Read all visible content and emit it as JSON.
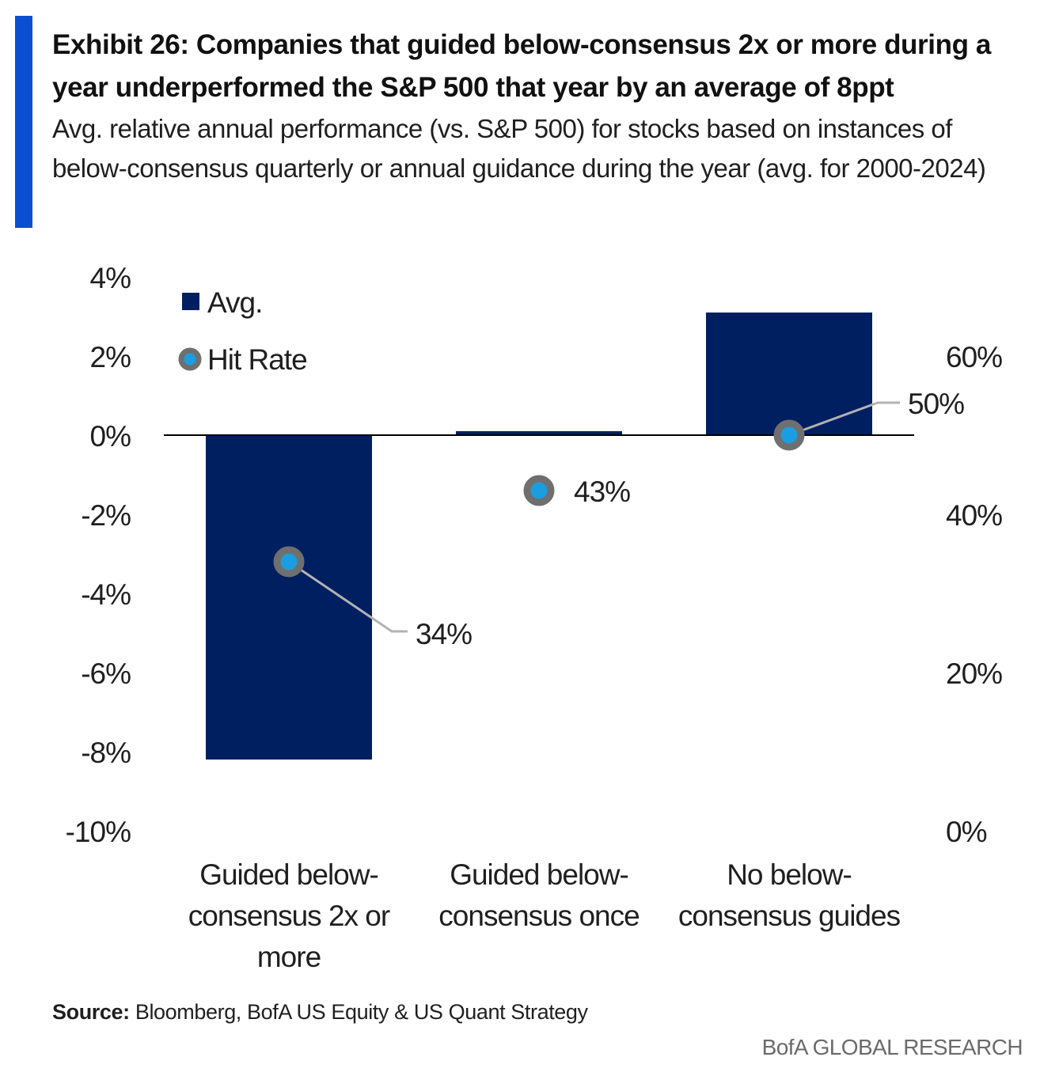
{
  "exhibit": {
    "title": "Exhibit 26: Companies that guided below-consensus 2x or more during a year underperformed the S&P 500 that year by an average of 8ppt",
    "subtitle": "Avg. relative annual performance (vs. S&P 500) for stocks based on instances of below-consensus quarterly or annual guidance during the year (avg. for 2000-2024)",
    "source_label": "Source:",
    "source_text": " Bloomberg, BofA US Equity & US Quant Strategy",
    "brand": "BofA GLOBAL RESEARCH"
  },
  "colors": {
    "accent": "#0b4fd1",
    "bar": "#001f60",
    "marker_ring": "#6f6f6f",
    "marker_fill": "#1a9ee0",
    "leader_line": "#b3b3b3",
    "zero_line": "#000000"
  },
  "chart_data": {
    "type": "bar",
    "categories": [
      [
        "Guided below-",
        "consensus 2x or",
        "more"
      ],
      [
        "Guided below-",
        "consensus once"
      ],
      [
        "No below-",
        "consensus guides"
      ]
    ],
    "series": [
      {
        "name": "Avg.",
        "type": "bar",
        "axis": "left",
        "values": [
          -8.2,
          0.1,
          3.1
        ]
      },
      {
        "name": "Hit Rate",
        "type": "scatter",
        "axis": "right",
        "values": [
          34,
          43,
          50
        ],
        "data_labels": [
          "34%",
          "43%",
          "50%"
        ]
      }
    ],
    "y_left": {
      "ylim": [
        -10,
        4
      ],
      "ticks": [
        4,
        2,
        0,
        -2,
        -4,
        -6,
        -8,
        -10
      ],
      "tick_labels": [
        "4%",
        "2%",
        "0%",
        "-2%",
        "-4%",
        "-6%",
        "-8%",
        "-10%"
      ]
    },
    "y_right": {
      "ylim": [
        0,
        70
      ],
      "ticks": [
        60,
        40,
        20,
        0
      ],
      "tick_labels": [
        "60%",
        "40%",
        "20%",
        "0%"
      ]
    },
    "legend": {
      "placement": "top-left",
      "items": [
        {
          "label": "Avg.",
          "marker": "square"
        },
        {
          "label": "Hit Rate",
          "marker": "ring-dot"
        }
      ]
    },
    "grid": false
  }
}
